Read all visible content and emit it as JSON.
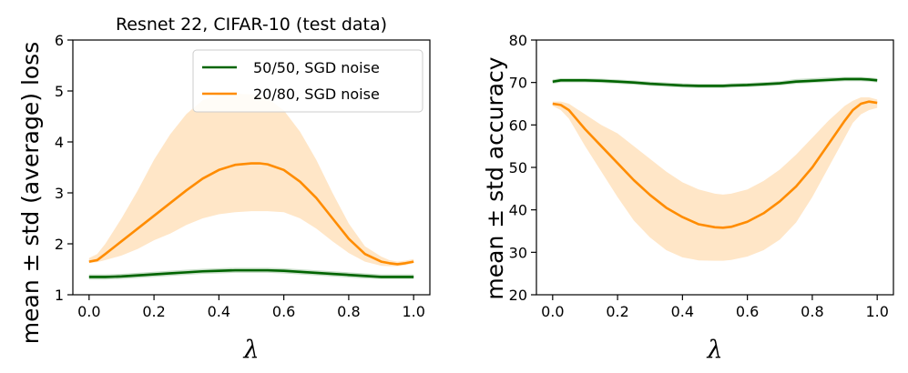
{
  "chart_data": [
    {
      "type": "line",
      "title": "Resnet 22, CIFAR-10 (test data)",
      "xlabel": "λ",
      "ylabel": "mean ± std (average) loss",
      "xlim": [
        -0.05,
        1.05
      ],
      "ylim": [
        1,
        6
      ],
      "xticks": [
        "0.0",
        "0.2",
        "0.4",
        "0.6",
        "0.8",
        "1.0"
      ],
      "yticks": [
        "1",
        "2",
        "3",
        "4",
        "5",
        "6"
      ],
      "legend": "top-right",
      "x": [
        0.0,
        0.025,
        0.05,
        0.1,
        0.15,
        0.2,
        0.25,
        0.3,
        0.35,
        0.4,
        0.45,
        0.5,
        0.525,
        0.55,
        0.6,
        0.65,
        0.7,
        0.75,
        0.8,
        0.85,
        0.9,
        0.925,
        0.95,
        0.975,
        1.0
      ],
      "series": [
        {
          "name": "50/50, SGD noise",
          "color": "#006400",
          "mean": [
            1.35,
            1.35,
            1.35,
            1.36,
            1.38,
            1.4,
            1.42,
            1.44,
            1.46,
            1.47,
            1.48,
            1.48,
            1.48,
            1.48,
            1.47,
            1.45,
            1.43,
            1.41,
            1.39,
            1.37,
            1.35,
            1.35,
            1.35,
            1.35,
            1.35
          ],
          "lower": [
            1.3,
            1.3,
            1.3,
            1.31,
            1.33,
            1.35,
            1.37,
            1.39,
            1.41,
            1.42,
            1.43,
            1.43,
            1.43,
            1.43,
            1.42,
            1.4,
            1.38,
            1.36,
            1.34,
            1.32,
            1.31,
            1.31,
            1.31,
            1.31,
            1.31
          ],
          "upper": [
            1.4,
            1.4,
            1.4,
            1.41,
            1.43,
            1.45,
            1.47,
            1.49,
            1.51,
            1.52,
            1.53,
            1.53,
            1.53,
            1.53,
            1.52,
            1.5,
            1.48,
            1.46,
            1.44,
            1.42,
            1.4,
            1.4,
            1.4,
            1.4,
            1.4
          ]
        },
        {
          "name": "20/80, SGD noise",
          "color": "#ff8c00",
          "mean": [
            1.65,
            1.68,
            1.8,
            2.05,
            2.3,
            2.55,
            2.8,
            3.05,
            3.28,
            3.45,
            3.55,
            3.58,
            3.58,
            3.56,
            3.45,
            3.22,
            2.9,
            2.5,
            2.1,
            1.8,
            1.65,
            1.62,
            1.6,
            1.62,
            1.65
          ],
          "lower": [
            1.62,
            1.64,
            1.68,
            1.77,
            1.9,
            2.07,
            2.2,
            2.37,
            2.5,
            2.58,
            2.62,
            2.64,
            2.64,
            2.64,
            2.62,
            2.5,
            2.3,
            2.05,
            1.82,
            1.65,
            1.57,
            1.56,
            1.56,
            1.58,
            1.62
          ],
          "upper": [
            1.72,
            1.8,
            2.0,
            2.5,
            3.05,
            3.65,
            4.15,
            4.55,
            4.82,
            4.93,
            4.95,
            4.93,
            4.9,
            4.85,
            4.62,
            4.2,
            3.65,
            3.0,
            2.4,
            1.95,
            1.75,
            1.68,
            1.65,
            1.67,
            1.7
          ]
        }
      ]
    },
    {
      "type": "line",
      "title": "",
      "xlabel": "λ",
      "ylabel": "mean ± std accuracy",
      "xlim": [
        -0.05,
        1.05
      ],
      "ylim": [
        20,
        80
      ],
      "xticks": [
        "0.0",
        "0.2",
        "0.4",
        "0.6",
        "0.8",
        "1.0"
      ],
      "yticks": [
        "20",
        "30",
        "40",
        "50",
        "60",
        "70",
        "80"
      ],
      "x": [
        0.0,
        0.025,
        0.05,
        0.1,
        0.15,
        0.2,
        0.25,
        0.3,
        0.35,
        0.4,
        0.45,
        0.5,
        0.525,
        0.55,
        0.6,
        0.65,
        0.7,
        0.75,
        0.8,
        0.85,
        0.9,
        0.925,
        0.95,
        0.975,
        1.0
      ],
      "series": [
        {
          "name": "50/50, SGD noise",
          "color": "#006400",
          "mean": [
            70.2,
            70.5,
            70.5,
            70.5,
            70.4,
            70.2,
            70.0,
            69.7,
            69.5,
            69.3,
            69.2,
            69.2,
            69.2,
            69.3,
            69.4,
            69.6,
            69.8,
            70.2,
            70.4,
            70.6,
            70.8,
            70.8,
            70.8,
            70.7,
            70.5
          ],
          "lower": [
            69.7,
            70.0,
            70.0,
            70.0,
            69.9,
            69.7,
            69.5,
            69.2,
            69.0,
            68.8,
            68.7,
            68.7,
            68.7,
            68.8,
            68.9,
            69.1,
            69.3,
            69.7,
            69.9,
            70.1,
            70.3,
            70.3,
            70.3,
            70.2,
            70.0
          ],
          "upper": [
            70.7,
            71.0,
            71.0,
            71.0,
            70.9,
            70.7,
            70.5,
            70.2,
            70.0,
            69.8,
            69.7,
            69.7,
            69.7,
            69.8,
            69.9,
            70.1,
            70.3,
            70.8,
            71.0,
            71.2,
            71.3,
            71.3,
            71.3,
            71.2,
            71.0
          ],
          "legend": false
        },
        {
          "name": "20/80, SGD noise",
          "color": "#ff8c00",
          "mean": [
            65.0,
            64.7,
            63.5,
            59.0,
            55.0,
            51.0,
            47.0,
            43.5,
            40.5,
            38.3,
            36.6,
            35.9,
            35.8,
            36.0,
            37.2,
            39.2,
            42.0,
            45.5,
            50.0,
            55.5,
            61.0,
            63.5,
            65.0,
            65.5,
            65.2
          ],
          "lower": [
            64.5,
            63.5,
            61.5,
            55.0,
            49.0,
            43.0,
            37.5,
            33.5,
            30.5,
            28.8,
            28.1,
            28.0,
            28.0,
            28.2,
            29.0,
            30.5,
            33.0,
            37.0,
            43.0,
            50.0,
            57.0,
            60.5,
            62.5,
            63.5,
            64.0
          ],
          "upper": [
            65.5,
            65.5,
            65.0,
            62.5,
            60.0,
            58.0,
            55.0,
            52.0,
            49.0,
            46.5,
            44.8,
            43.8,
            43.6,
            43.8,
            44.8,
            46.8,
            49.5,
            53.0,
            57.0,
            61.0,
            64.5,
            65.7,
            66.5,
            66.5,
            66.0
          ],
          "legend": false
        }
      ]
    }
  ]
}
